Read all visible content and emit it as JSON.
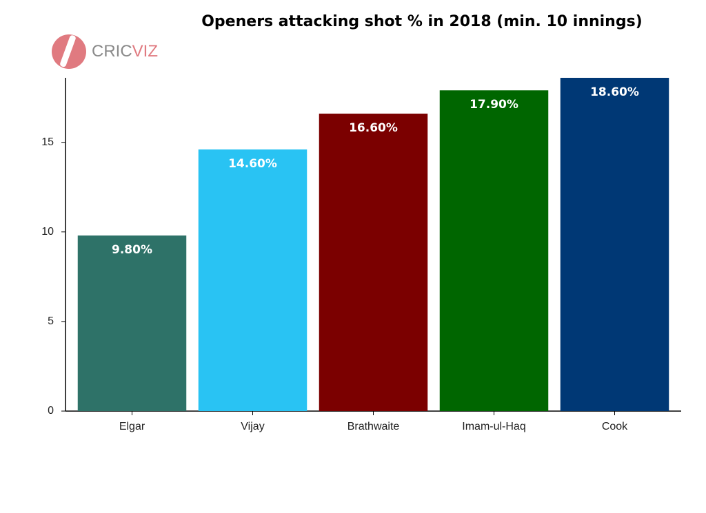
{
  "chart_data": {
    "type": "bar",
    "title": "Openers attacking shot % in 2018 (min. 10 innings)",
    "logo": [
      "CRIC",
      "VIZ"
    ],
    "categories": [
      "Elgar",
      "Vijay",
      "Brathwaite",
      "Imam-ul-Haq",
      "Cook"
    ],
    "values": [
      9.8,
      14.6,
      16.6,
      17.9,
      18.6
    ],
    "value_labels": [
      "9.80%",
      "14.60%",
      "16.60%",
      "17.90%",
      "18.60%"
    ],
    "colors": [
      "#2e7268",
      "#29c3f3",
      "#7b0000",
      "#006600",
      "#003875"
    ],
    "ylim": [
      0,
      18.6
    ],
    "yticks": [
      0,
      5,
      10,
      15
    ],
    "grid": false
  }
}
